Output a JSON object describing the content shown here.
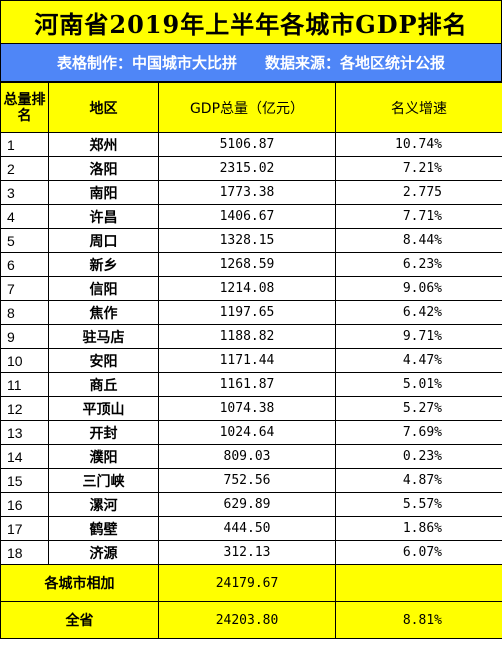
{
  "title": "河南省2019年上半年各城市GDP排名",
  "subtitle": {
    "maker": "表格制作：中国城市大比拼",
    "source": "数据来源：各地区统计公报"
  },
  "headers": {
    "rank": "总量排名",
    "city": "地区",
    "gdp": "GDP总量（亿元）",
    "growth": "名义增速"
  },
  "rows": [
    {
      "rank": "1",
      "city": "郑州",
      "gdp": "5106.87",
      "growth": "10.74%"
    },
    {
      "rank": "2",
      "city": "洛阳",
      "gdp": "2315.02",
      "growth": "7.21%"
    },
    {
      "rank": "3",
      "city": "南阳",
      "gdp": "1773.38",
      "growth": "2.775"
    },
    {
      "rank": "4",
      "city": "许昌",
      "gdp": "1406.67",
      "growth": "7.71%"
    },
    {
      "rank": "5",
      "city": "周口",
      "gdp": "1328.15",
      "growth": "8.44%"
    },
    {
      "rank": "6",
      "city": "新乡",
      "gdp": "1268.59",
      "growth": "6.23%"
    },
    {
      "rank": "7",
      "city": "信阳",
      "gdp": "1214.08",
      "growth": "9.06%"
    },
    {
      "rank": "8",
      "city": "焦作",
      "gdp": "1197.65",
      "growth": "6.42%"
    },
    {
      "rank": "9",
      "city": "驻马店",
      "gdp": "1188.82",
      "growth": "9.71%"
    },
    {
      "rank": "10",
      "city": "安阳",
      "gdp": "1171.44",
      "growth": "4.47%"
    },
    {
      "rank": "11",
      "city": "商丘",
      "gdp": "1161.87",
      "growth": "5.01%"
    },
    {
      "rank": "12",
      "city": "平顶山",
      "gdp": "1074.38",
      "growth": "5.27%"
    },
    {
      "rank": "13",
      "city": "开封",
      "gdp": "1024.64",
      "growth": "7.69%"
    },
    {
      "rank": "14",
      "city": "濮阳",
      "gdp": "809.03",
      "growth": "0.23%"
    },
    {
      "rank": "15",
      "city": "三门峡",
      "gdp": "752.56",
      "growth": "4.87%"
    },
    {
      "rank": "16",
      "city": "漯河",
      "gdp": "629.89",
      "growth": "5.57%"
    },
    {
      "rank": "17",
      "city": "鹤壁",
      "gdp": "444.50",
      "growth": "1.86%"
    },
    {
      "rank": "18",
      "city": "济源",
      "gdp": "312.13",
      "growth": "6.07%"
    }
  ],
  "sum_row": {
    "label": "各城市相加",
    "gdp": "24179.67",
    "growth": ""
  },
  "province_row": {
    "label": "全省",
    "gdp": "24203.80",
    "growth": "8.81%"
  },
  "colors": {
    "title_bg": "#ffff00",
    "subtitle_bg": "#4f86f7",
    "subtitle_text": "#ffffff",
    "border": "#000000"
  }
}
